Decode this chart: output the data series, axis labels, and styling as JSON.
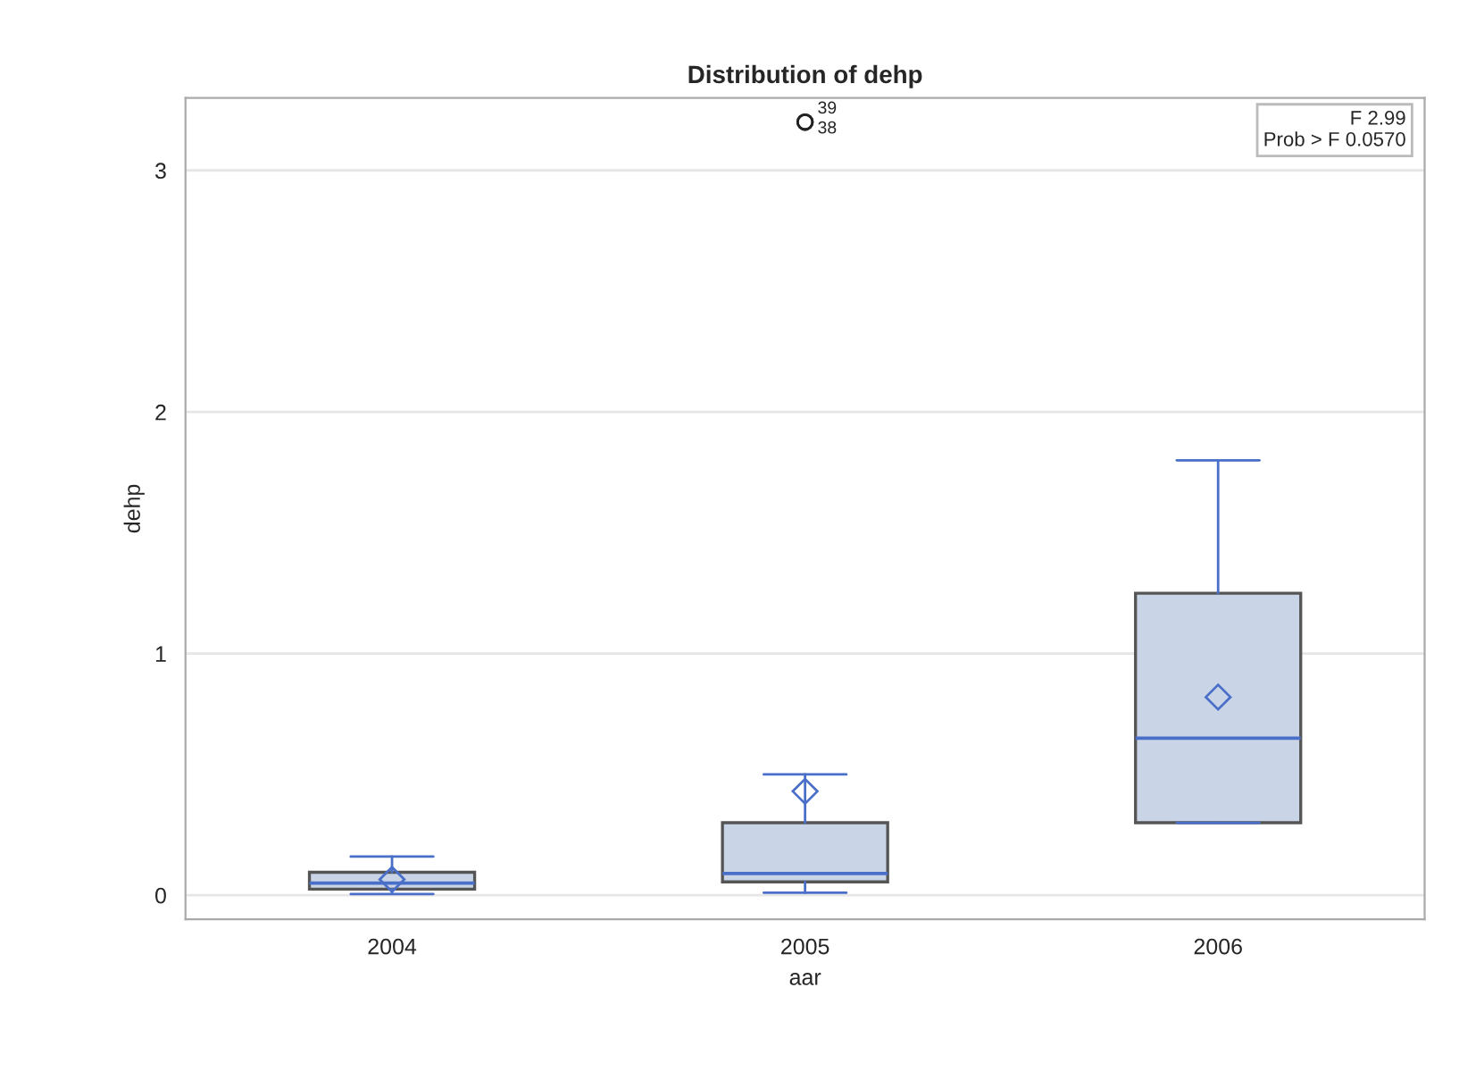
{
  "chart_data": {
    "type": "box",
    "title": "Distribution of dehp",
    "xlabel": "aar",
    "ylabel": "dehp",
    "categories": [
      "2004",
      "2005",
      "2006"
    ],
    "boxes": [
      {
        "low": 0.005,
        "q1": 0.025,
        "median": 0.05,
        "q3": 0.095,
        "high": 0.16,
        "mean": 0.065
      },
      {
        "low": 0.01,
        "q1": 0.055,
        "median": 0.09,
        "q3": 0.3,
        "high": 0.5,
        "mean": 0.43,
        "outliers": [
          3.2,
          3.2
        ]
      },
      {
        "low": 0.3,
        "q1": 0.3,
        "median": 0.65,
        "q3": 1.25,
        "high": 1.8,
        "mean": 0.82
      }
    ],
    "color": "#c9d5e6",
    "ylim": [
      -0.1,
      3.3
    ],
    "yticks": [
      0,
      1,
      2,
      3
    ],
    "grid": "y",
    "annotations": [
      "39",
      "38",
      "F 2.99",
      "Prob > F 0.0570"
    ]
  }
}
